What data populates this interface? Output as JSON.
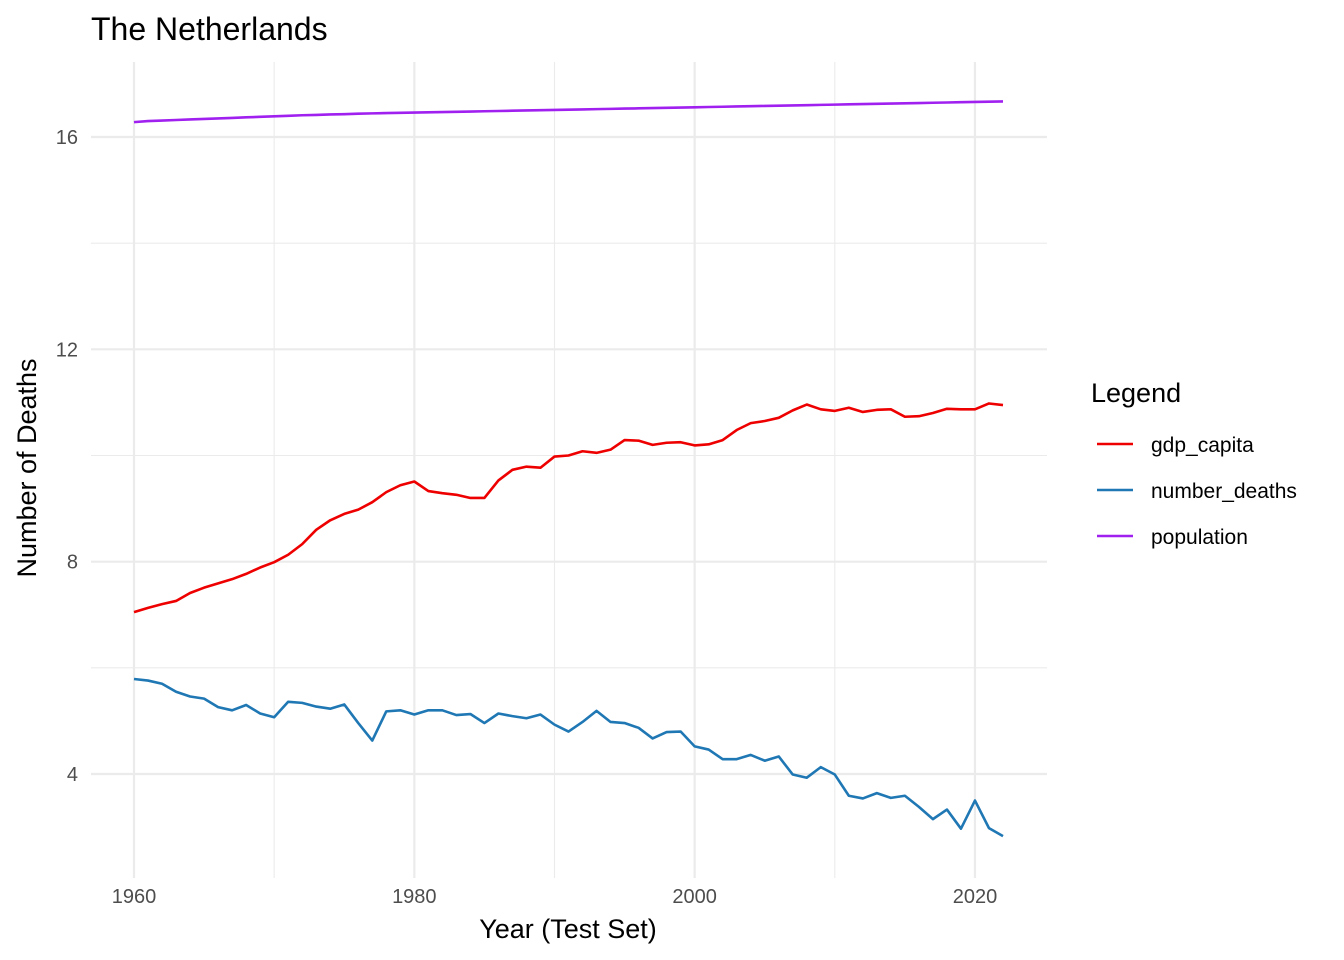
{
  "chart_data": {
    "type": "line",
    "title": "The Netherlands",
    "xlabel": "Year (Test Set)",
    "ylabel": "Number of Deaths",
    "xlim": [
      1956.9,
      11024.0
    ],
    "ylim": [
      2.55,
      17.4
    ],
    "x_ticks": [
      1960,
      1980,
      2000,
      2020
    ],
    "y_ticks": [
      4,
      8,
      12,
      16
    ],
    "grid": true,
    "legend": {
      "title": "Legend",
      "position": "right"
    },
    "x": [
      1960,
      1961,
      1962,
      1963,
      1964,
      1965,
      1966,
      1967,
      1968,
      1969,
      1970,
      1971,
      1972,
      1973,
      1974,
      1975,
      1976,
      1977,
      1978,
      1979,
      1980,
      1981,
      1982,
      1983,
      1984,
      1985,
      1986,
      1987,
      1988,
      1989,
      1990,
      1991,
      1992,
      1993,
      1994,
      1995,
      1996,
      1997,
      1998,
      1999,
      2000,
      2001,
      2002,
      2003,
      2004,
      2005,
      2006,
      2007,
      2008,
      2009,
      2010,
      2011,
      2012,
      2013,
      2014,
      2015,
      2016,
      2017,
      2018,
      2019,
      2020,
      2021,
      2022
    ],
    "series": [
      {
        "name": "gdp_capita",
        "color": "#ee0000",
        "values": [
          7.05,
          7.13,
          7.2,
          7.26,
          7.41,
          7.51,
          7.59,
          7.67,
          7.77,
          7.89,
          7.99,
          8.13,
          8.33,
          8.6,
          8.78,
          8.9,
          8.98,
          9.12,
          9.31,
          9.44,
          9.51,
          9.33,
          9.29,
          9.26,
          9.2,
          9.2,
          9.53,
          9.73,
          9.79,
          9.77,
          9.98,
          10.0,
          10.08,
          10.05,
          10.11,
          10.29,
          10.28,
          10.2,
          10.24,
          10.25,
          10.19,
          10.21,
          10.29,
          10.48,
          10.61,
          10.65,
          10.71,
          10.85,
          10.96,
          10.87,
          10.84,
          10.9,
          10.82,
          10.86,
          10.87,
          10.73,
          10.74,
          10.8,
          10.88,
          10.87,
          10.87,
          10.98,
          10.95
        ]
      },
      {
        "name": "number_deaths",
        "color": "#1f77b4",
        "values": [
          5.79,
          5.76,
          5.7,
          5.55,
          5.46,
          5.42,
          5.26,
          5.2,
          5.3,
          5.14,
          5.07,
          5.36,
          5.34,
          5.27,
          5.23,
          5.31,
          4.96,
          4.63,
          5.18,
          5.2,
          5.12,
          5.2,
          5.2,
          5.11,
          5.13,
          4.96,
          5.14,
          5.09,
          5.05,
          5.12,
          4.93,
          4.8,
          4.98,
          5.19,
          4.98,
          4.96,
          4.87,
          4.67,
          4.79,
          4.8,
          4.52,
          4.46,
          4.28,
          4.28,
          4.36,
          4.25,
          4.33,
          3.99,
          3.93,
          4.13,
          3.99,
          3.59,
          3.54,
          3.64,
          3.55,
          3.59,
          3.38,
          3.15,
          3.33,
          2.97,
          3.5,
          2.98,
          2.83
        ]
      },
      {
        "name": "population",
        "color": "#a020f0",
        "values": [
          16.28,
          16.3,
          16.31,
          16.32,
          16.33,
          16.34,
          16.35,
          16.36,
          16.37,
          16.38,
          16.39,
          16.4,
          16.41,
          16.415,
          16.425,
          16.43,
          16.44,
          16.445,
          16.45,
          16.455,
          16.46,
          16.465,
          16.47,
          16.475,
          16.48,
          16.485,
          16.49,
          16.495,
          16.5,
          16.505,
          16.51,
          16.515,
          16.52,
          16.525,
          16.53,
          16.535,
          16.54,
          16.545,
          16.55,
          16.555,
          16.56,
          16.565,
          16.57,
          16.575,
          16.58,
          16.585,
          16.59,
          16.595,
          16.6,
          16.605,
          16.61,
          16.615,
          16.62,
          16.625,
          16.63,
          16.635,
          16.64,
          16.645,
          16.65,
          16.655,
          16.66,
          16.665,
          16.67
        ]
      }
    ]
  }
}
